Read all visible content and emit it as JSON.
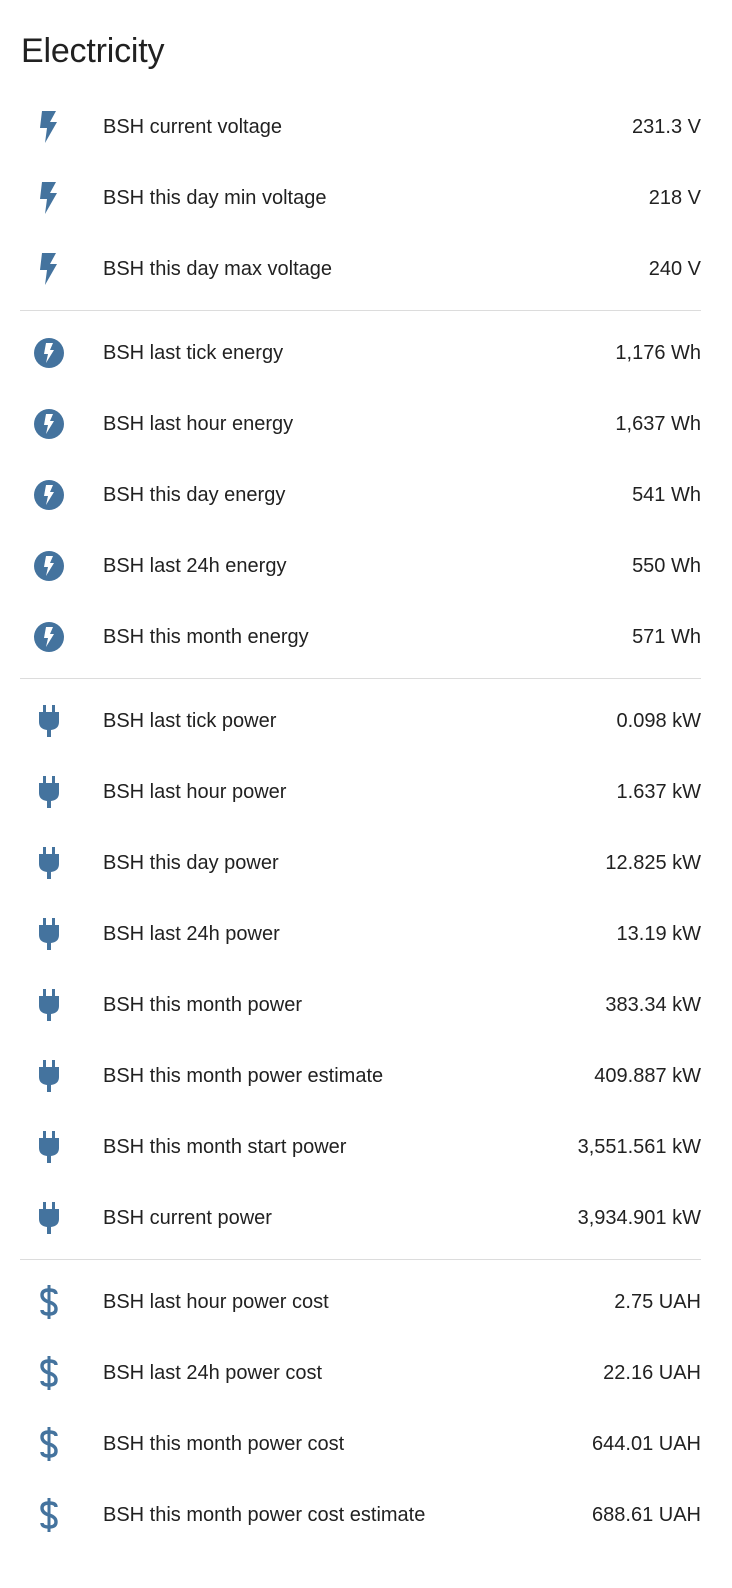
{
  "card": {
    "title": "Electricity"
  },
  "colors": {
    "icon": "#44739e",
    "text": "#212121",
    "divider": "#dcdcdc"
  },
  "groups": [
    {
      "icon": "flash-icon",
      "rows": [
        {
          "label": "BSH current voltage",
          "value": "231.3 V"
        },
        {
          "label": "BSH this day min voltage",
          "value": "218 V"
        },
        {
          "label": "BSH this day max voltage",
          "value": "240 V"
        }
      ]
    },
    {
      "icon": "flash-circle-icon",
      "rows": [
        {
          "label": "BSH last tick energy",
          "value": "1,176 Wh"
        },
        {
          "label": "BSH last hour energy",
          "value": "1,637 Wh"
        },
        {
          "label": "BSH this day energy",
          "value": "541 Wh"
        },
        {
          "label": "BSH last 24h energy",
          "value": "550 Wh"
        },
        {
          "label": "BSH this month energy",
          "value": "571 Wh"
        }
      ]
    },
    {
      "icon": "power-plug-icon",
      "rows": [
        {
          "label": "BSH last tick power",
          "value": "0.098 kW"
        },
        {
          "label": "BSH last hour power",
          "value": "1.637 kW"
        },
        {
          "label": "BSH this day power",
          "value": "12.825 kW"
        },
        {
          "label": "BSH last 24h power",
          "value": "13.19 kW"
        },
        {
          "label": "BSH this month power",
          "value": "383.34 kW"
        },
        {
          "label": "BSH this month power estimate",
          "value": "409.887 kW"
        },
        {
          "label": "BSH this month start power",
          "value": "3,551.561 kW"
        },
        {
          "label": "BSH current power",
          "value": "3,934.901 kW"
        }
      ]
    },
    {
      "icon": "currency-usd-icon",
      "rows": [
        {
          "label": "BSH last hour power cost",
          "value": "2.75 UAH"
        },
        {
          "label": "BSH last 24h power cost",
          "value": "22.16 UAH"
        },
        {
          "label": "BSH this month power cost",
          "value": "644.01 UAH"
        },
        {
          "label": "BSH this month power cost estimate",
          "value": "688.61 UAH"
        }
      ]
    }
  ]
}
